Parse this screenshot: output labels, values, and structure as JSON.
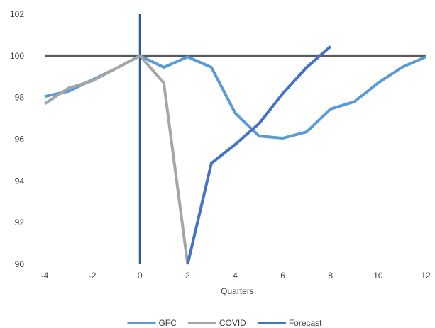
{
  "chart_data": {
    "type": "line",
    "title": "",
    "xlabel": "Quarters",
    "ylabel": "",
    "xlim": [
      -4,
      12
    ],
    "ylim": [
      90,
      102
    ],
    "x_ticks": [
      -4,
      -2,
      0,
      2,
      4,
      6,
      8,
      10,
      12
    ],
    "y_ticks": [
      90,
      92,
      94,
      96,
      98,
      100,
      102
    ],
    "grid": false,
    "legend_position": "bottom",
    "reference_lines": {
      "horizontal": {
        "y": 100,
        "color": "#595959"
      },
      "vertical": {
        "x": 0,
        "color": "#2E5C8A"
      }
    },
    "series": [
      {
        "name": "GFC",
        "color": "#5B9BD5",
        "x": [
          -4,
          -3,
          -2,
          -1,
          0,
          1,
          2,
          3,
          4,
          5,
          6,
          7,
          8,
          9,
          10,
          11,
          12
        ],
        "y": [
          98.05,
          98.3,
          98.85,
          99.4,
          100.0,
          99.45,
          99.95,
          99.45,
          97.25,
          96.15,
          96.05,
          96.35,
          97.45,
          97.8,
          98.7,
          99.45,
          99.95
        ]
      },
      {
        "name": "COVID",
        "color": "#A5A5A5",
        "x": [
          -4,
          -3,
          -2,
          -1,
          0,
          1,
          2
        ],
        "y": [
          97.7,
          98.45,
          98.8,
          99.4,
          100.0,
          98.7,
          90.0
        ]
      },
      {
        "name": "Forecast",
        "color": "#4472C4",
        "x": [
          2,
          3,
          4,
          5,
          6,
          7,
          8
        ],
        "y": [
          90.0,
          94.85,
          95.75,
          96.75,
          98.2,
          99.45,
          100.45
        ]
      }
    ]
  }
}
